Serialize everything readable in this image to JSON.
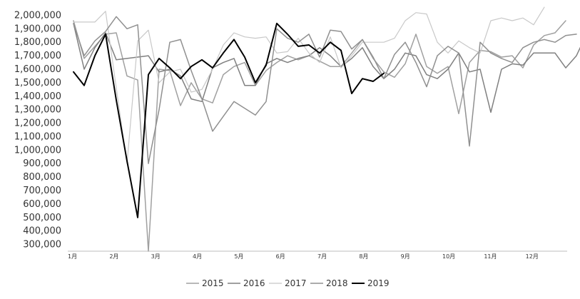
{
  "chart_data": {
    "type": "line",
    "title": "",
    "xlabel": "",
    "ylabel": "",
    "ylim": [
      250000,
      2050000
    ],
    "y_ticks": [
      300000,
      400000,
      500000,
      600000,
      700000,
      800000,
      900000,
      1000000,
      1100000,
      1200000,
      1300000,
      1400000,
      1500000,
      1600000,
      1700000,
      1800000,
      1900000,
      2000000
    ],
    "y_tick_labels": [
      "300,000",
      "400,000",
      "500,000",
      "600,000",
      "700,000",
      "800,000",
      "900,000",
      "1,000,000",
      "1,100,000",
      "1,200,000",
      "1,300,000",
      "1,400,000",
      "1,500,000",
      "1,600,000",
      "1,700,000",
      "1,800,000",
      "1,900,000",
      "2,000,000"
    ],
    "months": [
      "1月",
      "2月",
      "3月",
      "4月",
      "5月",
      "6月",
      "7月",
      "8月",
      "9月",
      "10月",
      "11月",
      "12月"
    ],
    "grid": false,
    "legend_position": "bottom",
    "series": [
      {
        "name": "2015",
        "color": "#a0a0a0",
        "width": 1.5,
        "values": [
          1960000,
          1680000,
          1770000,
          1860000,
          1870000,
          1550000,
          1520000,
          250000,
          1600000,
          1590000,
          1330000,
          1500000,
          1380000,
          1350000,
          1560000,
          1620000,
          1650000,
          1480000,
          1590000,
          1650000,
          1700000,
          1670000,
          1700000,
          1660000,
          1620000,
          1620000,
          1720000,
          1820000,
          1680000,
          1580000,
          1540000,
          1640000,
          1860000,
          1620000,
          1570000,
          1620000,
          1270000,
          1650000,
          1740000,
          1730000,
          1690000,
          1700000,
          1610000,
          1780000,
          1850000,
          1870000,
          1960000
        ]
      },
      {
        "name": "2016",
        "color": "#808080",
        "width": 1.5,
        "values": [
          1940000,
          1600000,
          1760000,
          1870000,
          1670000,
          1680000,
          1690000,
          1700000,
          1580000,
          1600000,
          1550000,
          1380000,
          1360000,
          1610000,
          1650000,
          1680000,
          1480000,
          1480000,
          1640000,
          1680000,
          1650000,
          1680000,
          1700000,
          1760000,
          1700000,
          1620000,
          1680000,
          1760000,
          1620000,
          1530000,
          1600000,
          1720000,
          1700000,
          1560000,
          1530000,
          1600000,
          1720000,
          1580000,
          1600000,
          1280000,
          1600000,
          1640000,
          1630000,
          1720000,
          1720000,
          1720000,
          1610000,
          1700000,
          1870000
        ]
      },
      {
        "name": "2017",
        "color": "#c8c8c8",
        "width": 1.2,
        "values": [
          1950000,
          1950000,
          1950000,
          2030000,
          1460000,
          900000,
          1810000,
          1890000,
          1500000,
          1580000,
          1600000,
          1430000,
          1450000,
          1600000,
          1780000,
          1870000,
          1840000,
          1830000,
          1840000,
          1720000,
          1730000,
          1830000,
          1720000,
          1650000,
          1840000,
          1610000,
          1700000,
          1800000,
          1800000,
          1800000,
          1830000,
          1960000,
          2020000,
          2010000,
          1800000,
          1720000,
          1810000,
          1760000,
          1720000,
          1960000,
          1980000,
          1960000,
          1980000,
          1930000,
          2060000
        ]
      },
      {
        "name": "2018",
        "color": "#909090",
        "width": 1.5,
        "values": [
          1940000,
          1700000,
          1810000,
          1880000,
          1990000,
          1900000,
          1930000,
          900000,
          1300000,
          1800000,
          1820000,
          1590000,
          1380000,
          1140000,
          1250000,
          1360000,
          1310000,
          1260000,
          1360000,
          1900000,
          1830000,
          1800000,
          1860000,
          1690000,
          1890000,
          1880000,
          1750000,
          1820000,
          1690000,
          1530000,
          1710000,
          1800000,
          1650000,
          1470000,
          1700000,
          1770000,
          1720000,
          1030000,
          1800000,
          1720000,
          1680000,
          1650000,
          1760000,
          1800000,
          1820000,
          1800000,
          1850000,
          1860000
        ]
      },
      {
        "name": "2019",
        "color": "#000000",
        "width": 2.0,
        "values": [
          1580000,
          1480000,
          1700000,
          1860000,
          1370000,
          920000,
          500000,
          1560000,
          1680000,
          1610000,
          1530000,
          1620000,
          1670000,
          1610000,
          1720000,
          1820000,
          1690000,
          1500000,
          1630000,
          1940000,
          1860000,
          1770000,
          1780000,
          1720000,
          1800000,
          1740000,
          1420000,
          1530000,
          1510000,
          1570000
        ]
      }
    ]
  }
}
